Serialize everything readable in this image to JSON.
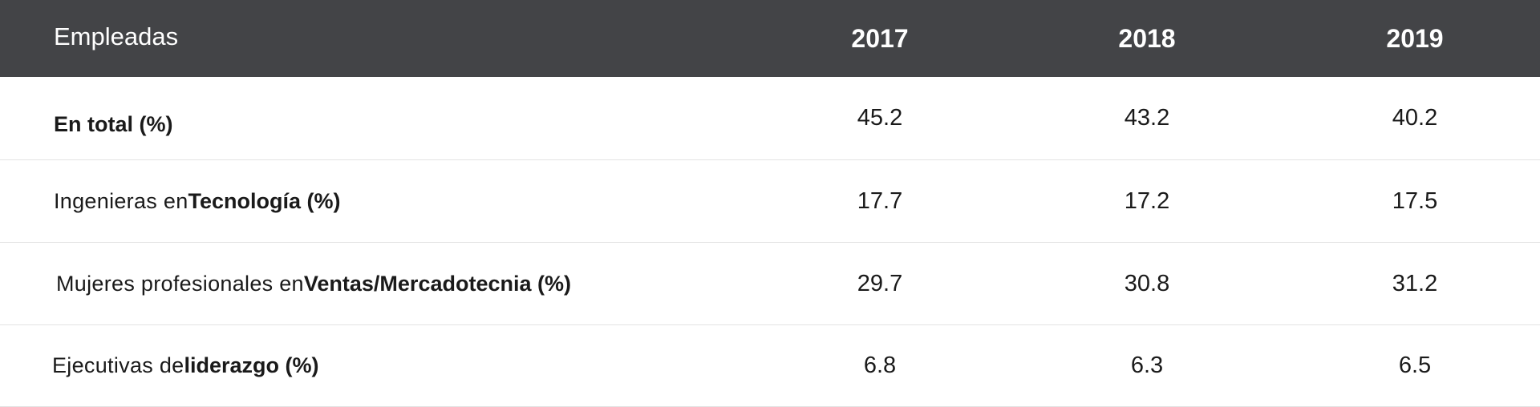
{
  "table": {
    "header": {
      "label": "Empleadas",
      "years": [
        "2017",
        "2018",
        "2019"
      ]
    },
    "rows": [
      {
        "label_plain": "",
        "label_bold": "En total (%)",
        "values": [
          "45.2",
          "43.2",
          "40.2"
        ]
      },
      {
        "label_plain": "Ingenieras en ",
        "label_bold": "Tecnología (%)",
        "values": [
          "17.7",
          "17.2",
          "17.5"
        ]
      },
      {
        "label_plain": "Mujeres profesionales en ",
        "label_bold": "Ventas/Mercadotecnia (%)",
        "values": [
          "29.7",
          "30.8",
          "31.2"
        ]
      },
      {
        "label_plain": "Ejecutivas de ",
        "label_bold": "liderazgo (%)",
        "values": [
          "6.8",
          "6.3",
          "6.5"
        ]
      }
    ]
  },
  "colors": {
    "header_background": "#434447",
    "header_text": "#ffffff",
    "row_divider": "#e3e3e3"
  }
}
